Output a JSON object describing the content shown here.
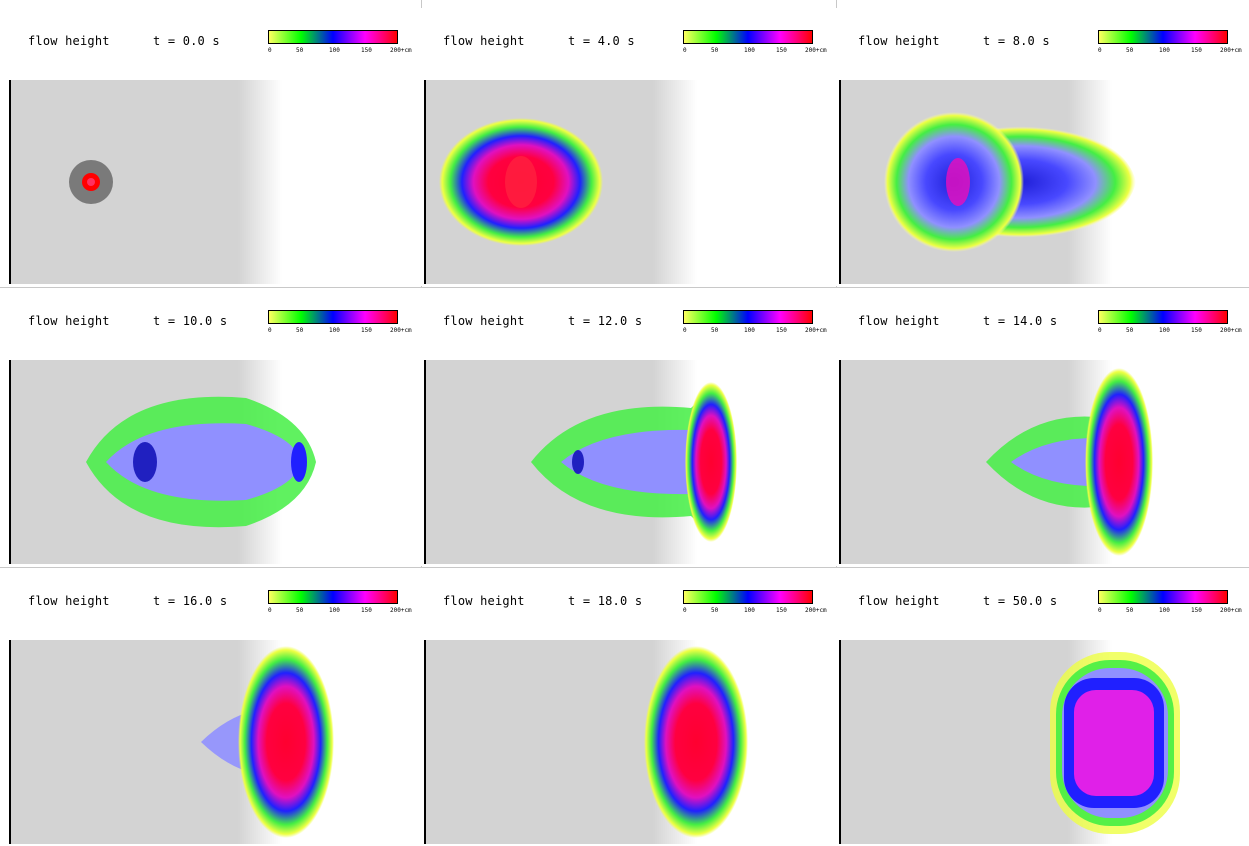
{
  "figure": {
    "variable_label": "flow height",
    "colorbar": {
      "ticks": [
        "0",
        "50",
        "100",
        "150",
        "200"
      ],
      "unit_suffix": "+cm",
      "stops": [
        "#ffff60",
        "#00ff00",
        "#0000ff",
        "#ff00ff",
        "#ff0000"
      ]
    },
    "panels": [
      {
        "time_label": "t = 0.0 s",
        "cx": 0.2,
        "stage": 0
      },
      {
        "time_label": "t = 4.0 s",
        "cx": 0.25,
        "stage": 1
      },
      {
        "time_label": "t = 8.0 s",
        "cx": 0.35,
        "stage": 2
      },
      {
        "time_label": "t = 10.0 s",
        "cx": 0.45,
        "stage": 3
      },
      {
        "time_label": "t = 12.0 s",
        "cx": 0.55,
        "stage": 4
      },
      {
        "time_label": "t = 14.0 s",
        "cx": 0.65,
        "stage": 5
      },
      {
        "time_label": "t = 16.0 s",
        "cx": 0.72,
        "stage": 6
      },
      {
        "time_label": "t = 18.0 s",
        "cx": 0.75,
        "stage": 7
      },
      {
        "time_label": "t = 50.0 s",
        "cx": 0.75,
        "stage": 8
      }
    ]
  }
}
